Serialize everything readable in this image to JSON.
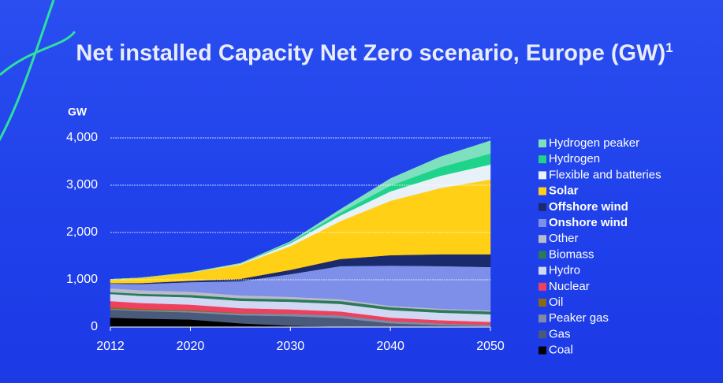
{
  "chart_data": {
    "type": "stacked_area",
    "title": "Net installed Capacity Net Zero scenario, Europe (GW)",
    "title_superscript": "1",
    "y_label": "GW",
    "x": [
      2012,
      2015,
      2020,
      2025,
      2030,
      2035,
      2040,
      2045,
      2050
    ],
    "xlim": [
      2012,
      2050
    ],
    "xticks": [
      2012,
      2020,
      2030,
      2040,
      2050
    ],
    "ylim": [
      0,
      4000
    ],
    "yticks": [
      0,
      {
        "value": 1000,
        "label": "1,000"
      },
      {
        "value": 2000,
        "label": "2,000"
      },
      {
        "value": 3000,
        "label": "3,000"
      },
      {
        "value": 4000,
        "label": "4,000"
      }
    ],
    "grid": true,
    "series": [
      {
        "name": "Coal",
        "color": "#000000",
        "values": [
          200,
          180,
          160,
          80,
          30,
          10,
          0,
          0,
          0
        ]
      },
      {
        "name": "Gas",
        "color": "#4a5a7a",
        "values": [
          170,
          160,
          150,
          170,
          200,
          180,
          80,
          40,
          20
        ]
      },
      {
        "name": "Peaker gas",
        "color": "#7f8aa8",
        "values": [
          20,
          20,
          30,
          40,
          50,
          60,
          50,
          40,
          30
        ]
      },
      {
        "name": "Oil",
        "color": "#8a6a10",
        "values": [
          30,
          25,
          20,
          10,
          5,
          0,
          0,
          0,
          0
        ]
      },
      {
        "name": "Nuclear",
        "color": "#f04060",
        "values": [
          130,
          125,
          115,
          100,
          90,
          80,
          70,
          65,
          60
        ]
      },
      {
        "name": "Hydro",
        "color": "#d0d8f4",
        "values": [
          150,
          150,
          155,
          155,
          160,
          160,
          160,
          160,
          160
        ]
      },
      {
        "name": "Biomass",
        "color": "#2a7a5a",
        "values": [
          40,
          45,
          50,
          55,
          55,
          60,
          60,
          60,
          60
        ]
      },
      {
        "name": "Other",
        "color": "#b8bcc8",
        "values": [
          80,
          75,
          70,
          60,
          50,
          40,
          30,
          25,
          20
        ]
      },
      {
        "name": "Onshore wind",
        "color": "#7d8fe8",
        "bold": true,
        "values": [
          100,
          130,
          200,
          300,
          480,
          700,
          850,
          900,
          920
        ]
      },
      {
        "name": "Offshore wind",
        "color": "#1a2a6c",
        "bold": true,
        "values": [
          10,
          20,
          30,
          50,
          90,
          150,
          220,
          250,
          270
        ]
      },
      {
        "name": "Solar",
        "color": "#ffd015",
        "bold": true,
        "values": [
          80,
          110,
          170,
          300,
          500,
          800,
          1150,
          1400,
          1580
        ]
      },
      {
        "name": "Flexible and batteries",
        "color": "#e8f0f8",
        "values": [
          0,
          0,
          5,
          20,
          60,
          120,
          200,
          260,
          320
        ]
      },
      {
        "name": "Hydrogen",
        "color": "#1ed38a",
        "values": [
          0,
          0,
          0,
          5,
          20,
          60,
          120,
          180,
          230
        ]
      },
      {
        "name": "Hydrogen peaker",
        "color": "#7fe0c0",
        "values": [
          0,
          0,
          0,
          5,
          20,
          70,
          150,
          220,
          270
        ]
      }
    ]
  }
}
